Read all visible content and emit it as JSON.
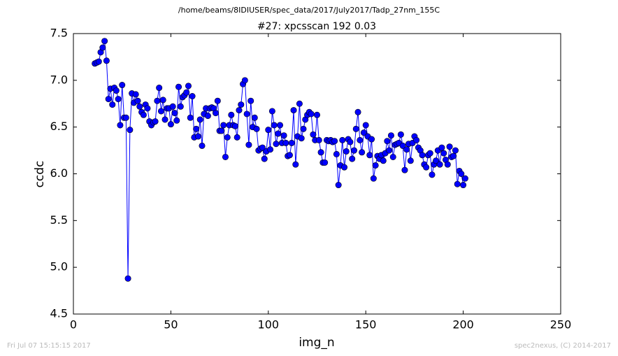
{
  "chart_data": {
    "type": "line",
    "suptitle": "/home/beams/8IDIUSER/spec_data/2017/July2017/Tadp_27nm_155C",
    "title": "#27: xpcsscan 192 0.03",
    "xlabel": "img_n",
    "ylabel": "ccdc",
    "x": [
      11,
      12,
      13,
      14,
      15,
      16,
      17,
      18,
      19,
      20,
      21,
      22,
      23,
      24,
      25,
      26,
      27,
      28,
      29,
      30,
      31,
      32,
      33,
      34,
      35,
      36,
      37,
      38,
      39,
      40,
      41,
      42,
      43,
      44,
      45,
      46,
      47,
      48,
      49,
      50,
      51,
      52,
      53,
      54,
      55,
      56,
      57,
      58,
      59,
      60,
      61,
      62,
      63,
      64,
      65,
      66,
      67,
      68,
      69,
      70,
      71,
      72,
      73,
      74,
      75,
      76,
      77,
      78,
      79,
      80,
      81,
      82,
      83,
      84,
      85,
      86,
      87,
      88,
      89,
      90,
      91,
      92,
      93,
      94,
      95,
      96,
      97,
      98,
      99,
      100,
      101,
      102,
      103,
      104,
      105,
      106,
      107,
      108,
      109,
      110,
      111,
      112,
      113,
      114,
      115,
      116,
      117,
      118,
      119,
      120,
      121,
      122,
      123,
      124,
      125,
      126,
      127,
      128,
      129,
      130,
      131,
      132,
      133,
      134,
      135,
      136,
      137,
      138,
      139,
      140,
      141,
      142,
      143,
      144,
      145,
      146,
      147,
      148,
      149,
      150,
      151,
      152,
      153,
      154,
      155,
      156,
      157,
      158,
      159,
      160,
      161,
      162,
      163,
      164,
      165,
      166,
      167,
      168,
      169,
      170,
      171,
      172,
      173,
      174,
      175,
      176,
      177,
      178,
      179,
      180,
      181,
      182,
      183,
      184,
      185,
      186,
      187,
      188,
      189,
      190,
      191,
      192,
      193,
      194,
      195,
      196,
      197,
      198,
      199,
      200,
      201
    ],
    "series": [
      {
        "color": "#0000ff",
        "values": [
          7.18,
          7.19,
          7.2,
          7.3,
          7.35,
          7.42,
          7.21,
          6.8,
          6.91,
          6.74,
          6.92,
          6.89,
          6.8,
          6.52,
          6.95,
          6.6,
          6.6,
          4.88,
          6.47,
          6.86,
          6.76,
          6.85,
          6.78,
          6.72,
          6.66,
          6.63,
          6.74,
          6.7,
          6.56,
          6.52,
          6.55,
          6.56,
          6.78,
          6.92,
          6.67,
          6.79,
          6.58,
          6.7,
          6.7,
          6.53,
          6.72,
          6.65,
          6.57,
          6.93,
          6.72,
          6.82,
          6.84,
          6.87,
          6.94,
          6.6,
          6.83,
          6.39,
          6.48,
          6.4,
          6.58,
          6.3,
          6.64,
          6.7,
          6.62,
          6.7,
          6.71,
          6.7,
          6.65,
          6.78,
          6.46,
          6.46,
          6.52,
          6.18,
          6.39,
          6.52,
          6.63,
          6.52,
          6.51,
          6.39,
          6.68,
          6.74,
          6.96,
          7.0,
          6.64,
          6.31,
          6.78,
          6.5,
          6.6,
          6.48,
          6.25,
          6.27,
          6.28,
          6.16,
          6.24,
          6.47,
          6.26,
          6.67,
          6.52,
          6.32,
          6.43,
          6.52,
          6.33,
          6.41,
          6.33,
          6.19,
          6.2,
          6.33,
          6.68,
          6.1,
          6.4,
          6.75,
          6.38,
          6.48,
          6.58,
          6.63,
          6.66,
          6.64,
          6.42,
          6.36,
          6.63,
          6.36,
          6.23,
          6.12,
          6.12,
          6.36,
          6.35,
          6.36,
          6.34,
          6.35,
          6.21,
          5.88,
          6.09,
          6.36,
          6.07,
          6.24,
          6.37,
          6.34,
          6.16,
          6.25,
          6.48,
          6.66,
          6.36,
          6.23,
          6.44,
          6.52,
          6.4,
          6.2,
          6.37,
          5.95,
          6.09,
          6.19,
          6.16,
          6.2,
          6.14,
          6.22,
          6.35,
          6.25,
          6.41,
          6.18,
          6.31,
          6.32,
          6.33,
          6.42,
          6.3,
          6.04,
          6.26,
          6.32,
          6.14,
          6.33,
          6.4,
          6.36,
          6.28,
          6.25,
          6.2,
          6.1,
          6.07,
          6.2,
          6.22,
          5.99,
          6.1,
          6.14,
          6.25,
          6.1,
          6.28,
          6.22,
          6.15,
          6.1,
          6.29,
          6.18,
          6.19,
          6.25,
          5.89,
          6.03,
          6.0,
          5.88,
          5.95
        ]
      }
    ],
    "xlim": [
      0,
      250
    ],
    "xticks": [
      0,
      50,
      100,
      150,
      200,
      250
    ],
    "ylim": [
      4.5,
      7.5
    ],
    "yticks": [
      4.5,
      {
        "value": 5,
        "label": "5.0"
      },
      5.5,
      {
        "value": 6,
        "label": "6.0"
      },
      6.5,
      {
        "value": 7,
        "label": "7.0"
      },
      7.5
    ]
  },
  "footer": {
    "left": "Fri Jul 07 15:15:15 2017",
    "right": "spec2nexus, (C) 2014-2017"
  }
}
